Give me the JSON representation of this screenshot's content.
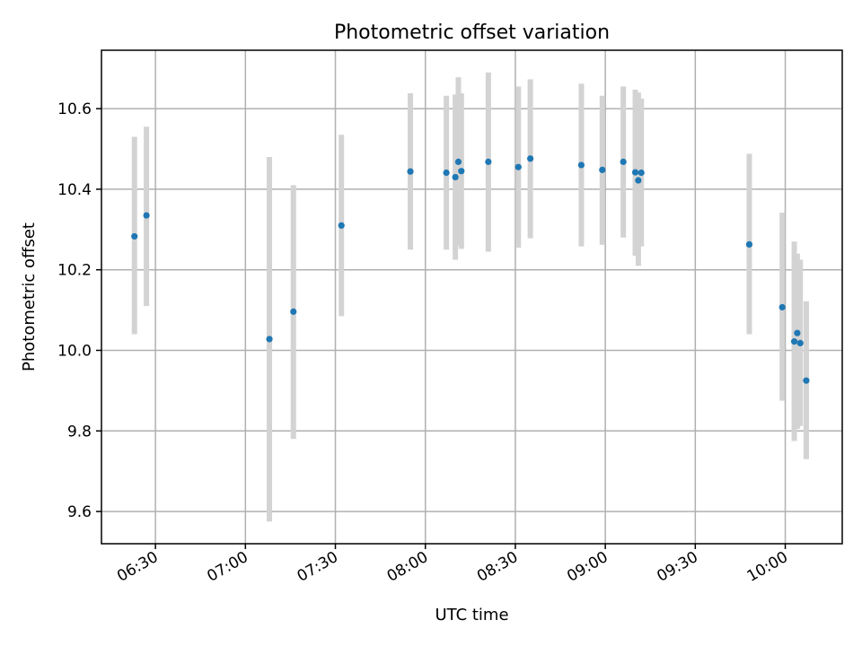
{
  "chart_data": {
    "type": "scatter",
    "title": "Photometric offset variation",
    "xlabel": "UTC time",
    "ylabel": "Photometric offset",
    "x_unit": "time",
    "xlim": [
      "06:12",
      "10:19"
    ],
    "ylim": [
      9.52,
      10.745
    ],
    "x_ticks": [
      "06:30",
      "07:00",
      "07:30",
      "08:00",
      "08:30",
      "09:00",
      "09:30",
      "10:00"
    ],
    "y_ticks": [
      "9.6",
      "9.8",
      "10.0",
      "10.2",
      "10.4",
      "10.6"
    ],
    "grid": true,
    "marker_color": "#1f77b4",
    "errorbar_color": "#d3d3d3",
    "points": [
      {
        "x": "06:23",
        "y": 10.283,
        "ylow": 10.04,
        "yhigh": 10.53
      },
      {
        "x": "06:27",
        "y": 10.335,
        "ylow": 10.11,
        "yhigh": 10.555
      },
      {
        "x": "07:08",
        "y": 10.028,
        "ylow": 9.575,
        "yhigh": 10.48
      },
      {
        "x": "07:16",
        "y": 10.096,
        "ylow": 9.78,
        "yhigh": 10.41
      },
      {
        "x": "07:32",
        "y": 10.31,
        "ylow": 10.085,
        "yhigh": 10.535
      },
      {
        "x": "07:55",
        "y": 10.444,
        "ylow": 10.25,
        "yhigh": 10.638
      },
      {
        "x": "08:07",
        "y": 10.441,
        "ylow": 10.25,
        "yhigh": 10.632
      },
      {
        "x": "08:10",
        "y": 10.43,
        "ylow": 10.225,
        "yhigh": 10.635
      },
      {
        "x": "08:11",
        "y": 10.468,
        "ylow": 10.26,
        "yhigh": 10.678
      },
      {
        "x": "08:12",
        "y": 10.445,
        "ylow": 10.252,
        "yhigh": 10.638
      },
      {
        "x": "08:21",
        "y": 10.468,
        "ylow": 10.245,
        "yhigh": 10.69
      },
      {
        "x": "08:31",
        "y": 10.455,
        "ylow": 10.255,
        "yhigh": 10.655
      },
      {
        "x": "08:35",
        "y": 10.476,
        "ylow": 10.278,
        "yhigh": 10.673
      },
      {
        "x": "08:52",
        "y": 10.46,
        "ylow": 10.258,
        "yhigh": 10.662
      },
      {
        "x": "08:59",
        "y": 10.448,
        "ylow": 10.262,
        "yhigh": 10.632
      },
      {
        "x": "09:06",
        "y": 10.468,
        "ylow": 10.28,
        "yhigh": 10.655
      },
      {
        "x": "09:10",
        "y": 10.442,
        "ylow": 10.235,
        "yhigh": 10.647
      },
      {
        "x": "09:11",
        "y": 10.422,
        "ylow": 10.21,
        "yhigh": 10.64
      },
      {
        "x": "09:12",
        "y": 10.441,
        "ylow": 10.258,
        "yhigh": 10.625
      },
      {
        "x": "09:48",
        "y": 10.263,
        "ylow": 10.04,
        "yhigh": 10.488
      },
      {
        "x": "09:59",
        "y": 10.107,
        "ylow": 9.875,
        "yhigh": 10.342
      },
      {
        "x": "10:03",
        "y": 10.022,
        "ylow": 9.775,
        "yhigh": 10.27
      },
      {
        "x": "10:04",
        "y": 10.043,
        "ylow": 9.805,
        "yhigh": 10.24
      },
      {
        "x": "10:05",
        "y": 10.018,
        "ylow": 9.812,
        "yhigh": 10.225
      },
      {
        "x": "10:07",
        "y": 9.925,
        "ylow": 9.73,
        "yhigh": 10.122
      }
    ]
  }
}
